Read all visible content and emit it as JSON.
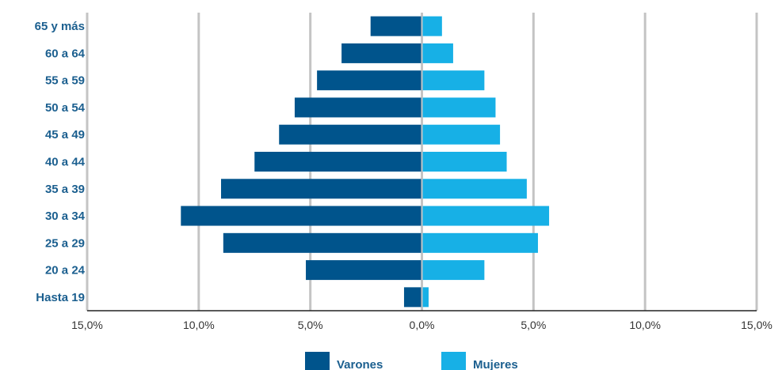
{
  "chart_data": {
    "type": "bar",
    "orientation": "horizontal",
    "categories": [
      "65 y más",
      "60 a 64",
      "55 a 59",
      "50 a 54",
      "45 a 49",
      "40 a 44",
      "35 a 39",
      "30 a 34",
      "25 a 29",
      "20 a 24",
      "Hasta 19"
    ],
    "series": [
      {
        "name": "Varones",
        "color": "#00548c",
        "values": [
          2.3,
          3.6,
          4.7,
          5.7,
          6.4,
          7.5,
          9.0,
          10.8,
          8.9,
          5.2,
          0.8
        ]
      },
      {
        "name": "Mujeres",
        "color": "#17b0e6",
        "values": [
          0.9,
          1.4,
          2.8,
          3.3,
          3.5,
          3.8,
          4.7,
          5.7,
          5.2,
          2.8,
          0.3
        ]
      }
    ],
    "x_ticks": [
      "15,0%",
      "10,0%",
      "5,0%",
      "0,0%",
      "5,0%",
      "10,0%",
      "15,0%"
    ],
    "xlim": [
      -15,
      15
    ],
    "grid": true,
    "legend_position": "bottom"
  }
}
